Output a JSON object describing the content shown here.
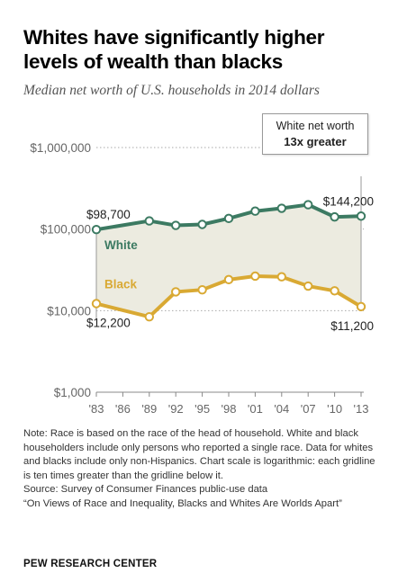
{
  "title": "Whites have significantly higher levels of wealth than blacks",
  "subtitle": "Median net worth of U.S. households in 2014 dollars",
  "callout": {
    "line1": "White net worth",
    "line2": "13x greater"
  },
  "notes": [
    "Note: Race is based on the race of the head of household. White and black householders include only persons who reported a single race. Data for whites and blacks include only non-Hispanics. Chart scale is logarithmic: each gridline is ten times greater than the gridline below it.",
    "Source: Survey of Consumer Finances public-use data",
    "“On Views of Race and Inequality, Blacks and Whites Are Worlds Apart”"
  ],
  "brand": "PEW RESEARCH CENTER",
  "chart_data": {
    "type": "line",
    "scale": "log",
    "ylim": [
      1000,
      1000000
    ],
    "yticks": [
      1000,
      10000,
      100000,
      1000000
    ],
    "ytick_labels": [
      "$1,000",
      "$10,000",
      "$100,000",
      "$1,000,000"
    ],
    "categories": [
      "'83",
      "'86",
      "'89",
      "'92",
      "'95",
      "'98",
      "'01",
      "'04",
      "'07",
      "'10",
      "'13"
    ],
    "series": [
      {
        "name": "White",
        "color": "#3c7a62",
        "values": [
          98700,
          null,
          126000,
          111000,
          114000,
          135000,
          166000,
          180000,
          199000,
          141000,
          144200
        ]
      },
      {
        "name": "Black",
        "color": "#d9a933",
        "values": [
          12200,
          null,
          8400,
          17000,
          18000,
          24000,
          26500,
          26000,
          20000,
          17500,
          11200
        ]
      }
    ],
    "data_labels": [
      {
        "text": "$98,700",
        "series": "White",
        "index": 0
      },
      {
        "text": "$144,200",
        "series": "White",
        "index": 10
      },
      {
        "text": "$12,200",
        "series": "Black",
        "index": 0
      },
      {
        "text": "$11,200",
        "series": "Black",
        "index": 10
      }
    ],
    "fill_between": true,
    "grid": "dotted",
    "colors": {
      "axis": "#888888",
      "grid": "#aaaaaa",
      "fill": "#ecebe0",
      "tick_text": "#666666"
    }
  }
}
